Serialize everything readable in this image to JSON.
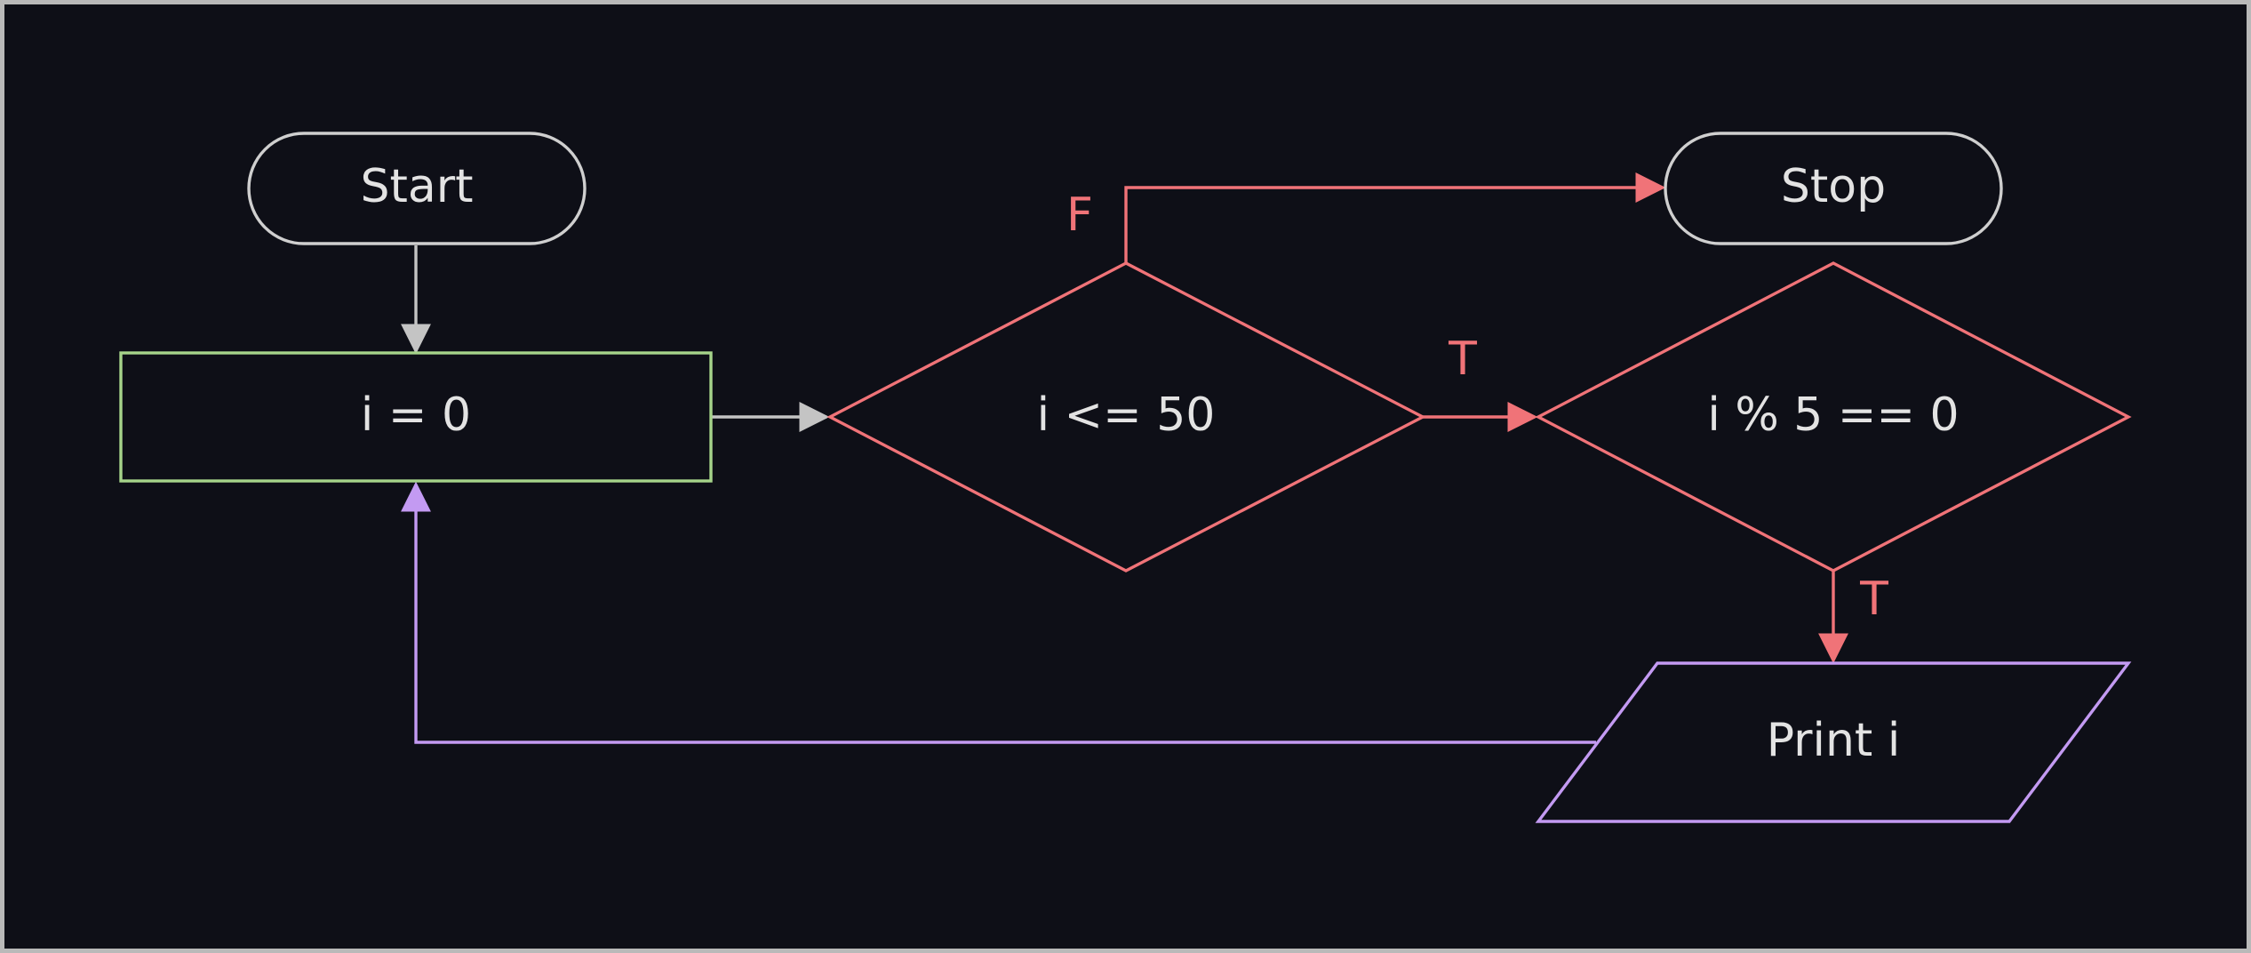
{
  "diagram": {
    "type": "flowchart",
    "colors": {
      "background": "#0e0f17",
      "frame": "#b9b9b9",
      "text": "#e3e3e3",
      "terminal_stroke": "#cfcfcf",
      "process_stroke": "#a6d48a",
      "decision_stroke": "#f07378",
      "io_stroke": "#c39af2",
      "arrow_default": "#c4c4c4",
      "arrow_decision": "#f07378",
      "arrow_loop": "#c39af2"
    },
    "nodes": [
      {
        "id": "start",
        "shape": "terminal",
        "label": "Start"
      },
      {
        "id": "init",
        "shape": "process",
        "label": "i = 0"
      },
      {
        "id": "cond",
        "shape": "decision",
        "label": "i <= 50"
      },
      {
        "id": "stop",
        "shape": "terminal",
        "label": "Stop"
      },
      {
        "id": "mod",
        "shape": "decision",
        "label": "i % 5 == 0"
      },
      {
        "id": "print",
        "shape": "io",
        "label": "Print i"
      }
    ],
    "edges": [
      {
        "from": "start",
        "to": "init",
        "label": ""
      },
      {
        "from": "init",
        "to": "cond",
        "label": ""
      },
      {
        "from": "cond",
        "to": "stop",
        "label": "F"
      },
      {
        "from": "cond",
        "to": "mod",
        "label": "T"
      },
      {
        "from": "mod",
        "to": "print",
        "label": "T"
      },
      {
        "from": "print",
        "to": "init",
        "label": ""
      }
    ]
  }
}
